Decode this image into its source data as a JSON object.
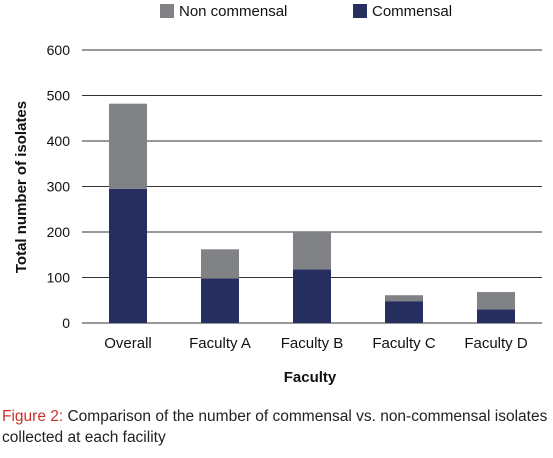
{
  "chart_data": {
    "type": "bar",
    "stacked": true,
    "categories": [
      "Overall",
      "Faculty A",
      "Faculty B",
      "Faculty C",
      "Faculty D"
    ],
    "series": [
      {
        "name": "Commensal",
        "values": [
          295,
          98,
          118,
          48,
          30
        ],
        "color": "#252e5f"
      },
      {
        "name": "Non commensal",
        "values": [
          187,
          64,
          82,
          13,
          38
        ],
        "color": "#818285"
      }
    ],
    "legend_order": [
      "Non commensal",
      "Commensal"
    ],
    "legend_position": "top",
    "xlabel": "Faculty",
    "ylabel": "Total number of isolates",
    "ylim": [
      0,
      600
    ],
    "yticks": [
      0,
      100,
      200,
      300,
      400,
      500,
      600
    ],
    "grid": true
  },
  "caption": {
    "label": "Figure 2:",
    "text": " Comparison of the number of commensal vs. non-commensal isolates collected at each facility"
  }
}
